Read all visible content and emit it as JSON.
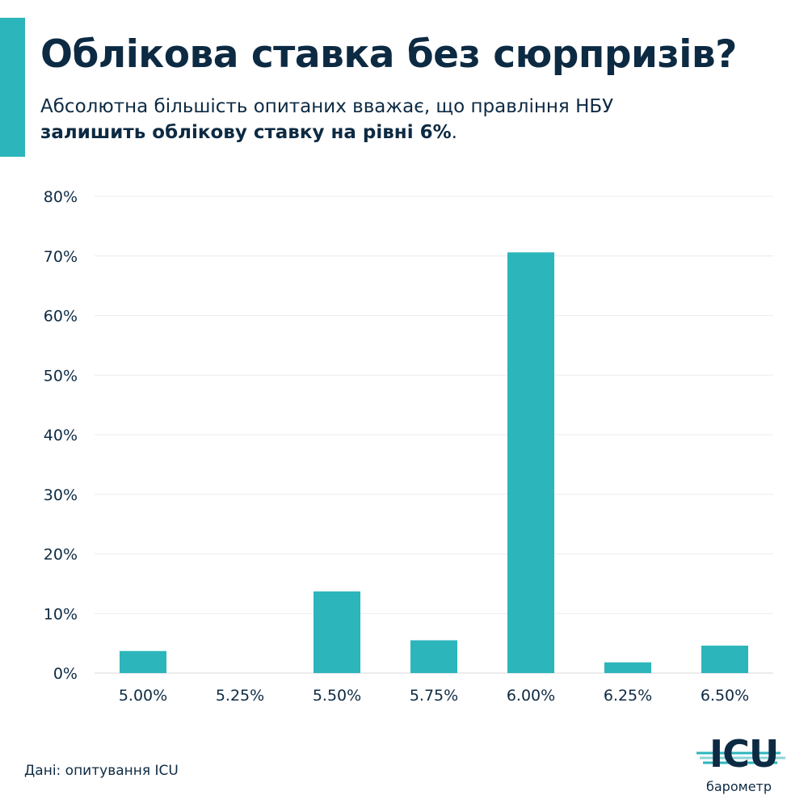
{
  "header": {
    "title": "Облікова ставка без сюрпризів?",
    "subtitle_line1": "Абсолютна більшість опитаних вважає, що правління НБУ",
    "subtitle_line2_bold": "залишить облікову ставку на рівні 6%",
    "subtitle_line2_end": "."
  },
  "chart_data": {
    "type": "bar",
    "categories": [
      "5.00%",
      "5.25%",
      "5.50%",
      "5.75%",
      "6.00%",
      "6.25%",
      "6.50%"
    ],
    "values": [
      3.7,
      0,
      13.7,
      5.5,
      70.6,
      1.8,
      4.6
    ],
    "yticks": [
      "0%",
      "10%",
      "20%",
      "30%",
      "40%",
      "50%",
      "60%",
      "70%",
      "80%"
    ],
    "ylim": [
      0,
      80
    ],
    "grid": true,
    "bar_color": "#2cb5bb"
  },
  "footer": {
    "source": "Дані: опитування ICU",
    "logo_word": "ICU",
    "logo_caption": "барометр"
  },
  "colors": {
    "accent": "#2cb5bb",
    "text": "#0d2a43",
    "grid": "#ececec",
    "logo_line_light": "#8fd3d6"
  }
}
